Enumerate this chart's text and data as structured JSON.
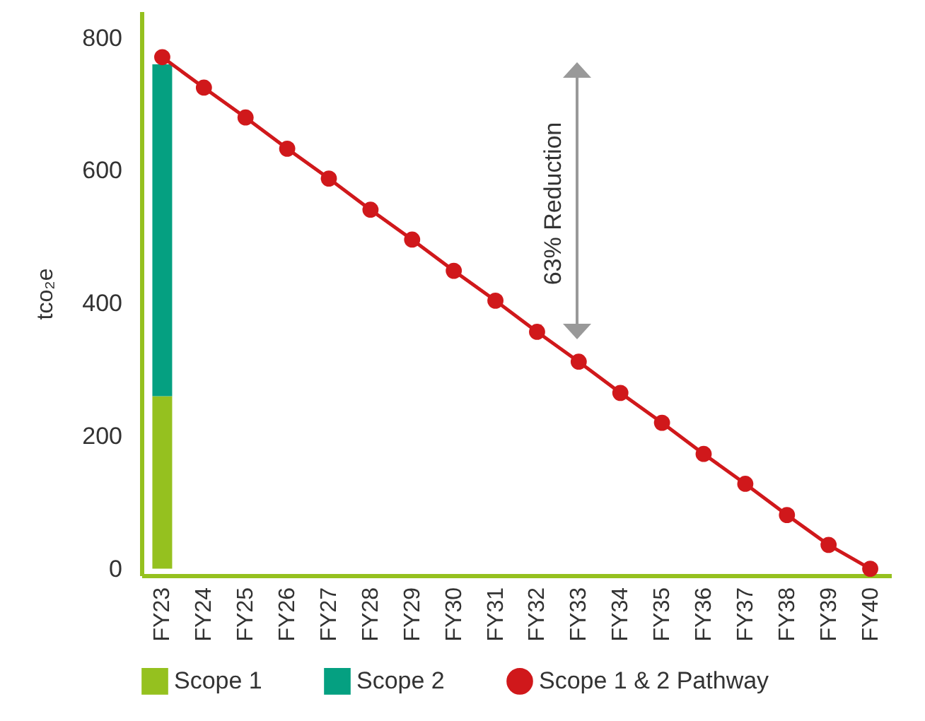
{
  "chart_data": {
    "type": "bar",
    "ylabel": "tco₂e",
    "categories": [
      "FY23",
      "FY24",
      "FY25",
      "FY26",
      "FY27",
      "FY28",
      "FY29",
      "FY30",
      "FY31",
      "FY32",
      "FY33",
      "FY34",
      "FY35",
      "FY36",
      "FY37",
      "FY38",
      "FY39",
      "FY40"
    ],
    "stacked": true,
    "series": [
      {
        "name": "Scope 1",
        "color": "#95c11f",
        "values": [
          260,
          null,
          null,
          null,
          null,
          null,
          null,
          null,
          null,
          null,
          null,
          null,
          null,
          null,
          null,
          null,
          null,
          null
        ]
      },
      {
        "name": "Scope 2",
        "color": "#05a081",
        "values": [
          500,
          null,
          null,
          null,
          null,
          null,
          null,
          null,
          null,
          null,
          null,
          null,
          null,
          null,
          null,
          null,
          null,
          null
        ]
      },
      {
        "name": "Scope 1 & 2 Pathway",
        "type": "line",
        "color": "#d0181b",
        "values": [
          771,
          725,
          680,
          633,
          588,
          541,
          496,
          449,
          404,
          357,
          312,
          265,
          220,
          173,
          128,
          81,
          36,
          0
        ]
      }
    ],
    "ylim": [
      -10,
      840
    ],
    "yticks": [
      0,
      200,
      400,
      600,
      800
    ],
    "grid": false,
    "legend": "bottom",
    "marker": "circle",
    "line_style": "solid",
    "annotations": [
      "63% Reduction"
    ]
  }
}
